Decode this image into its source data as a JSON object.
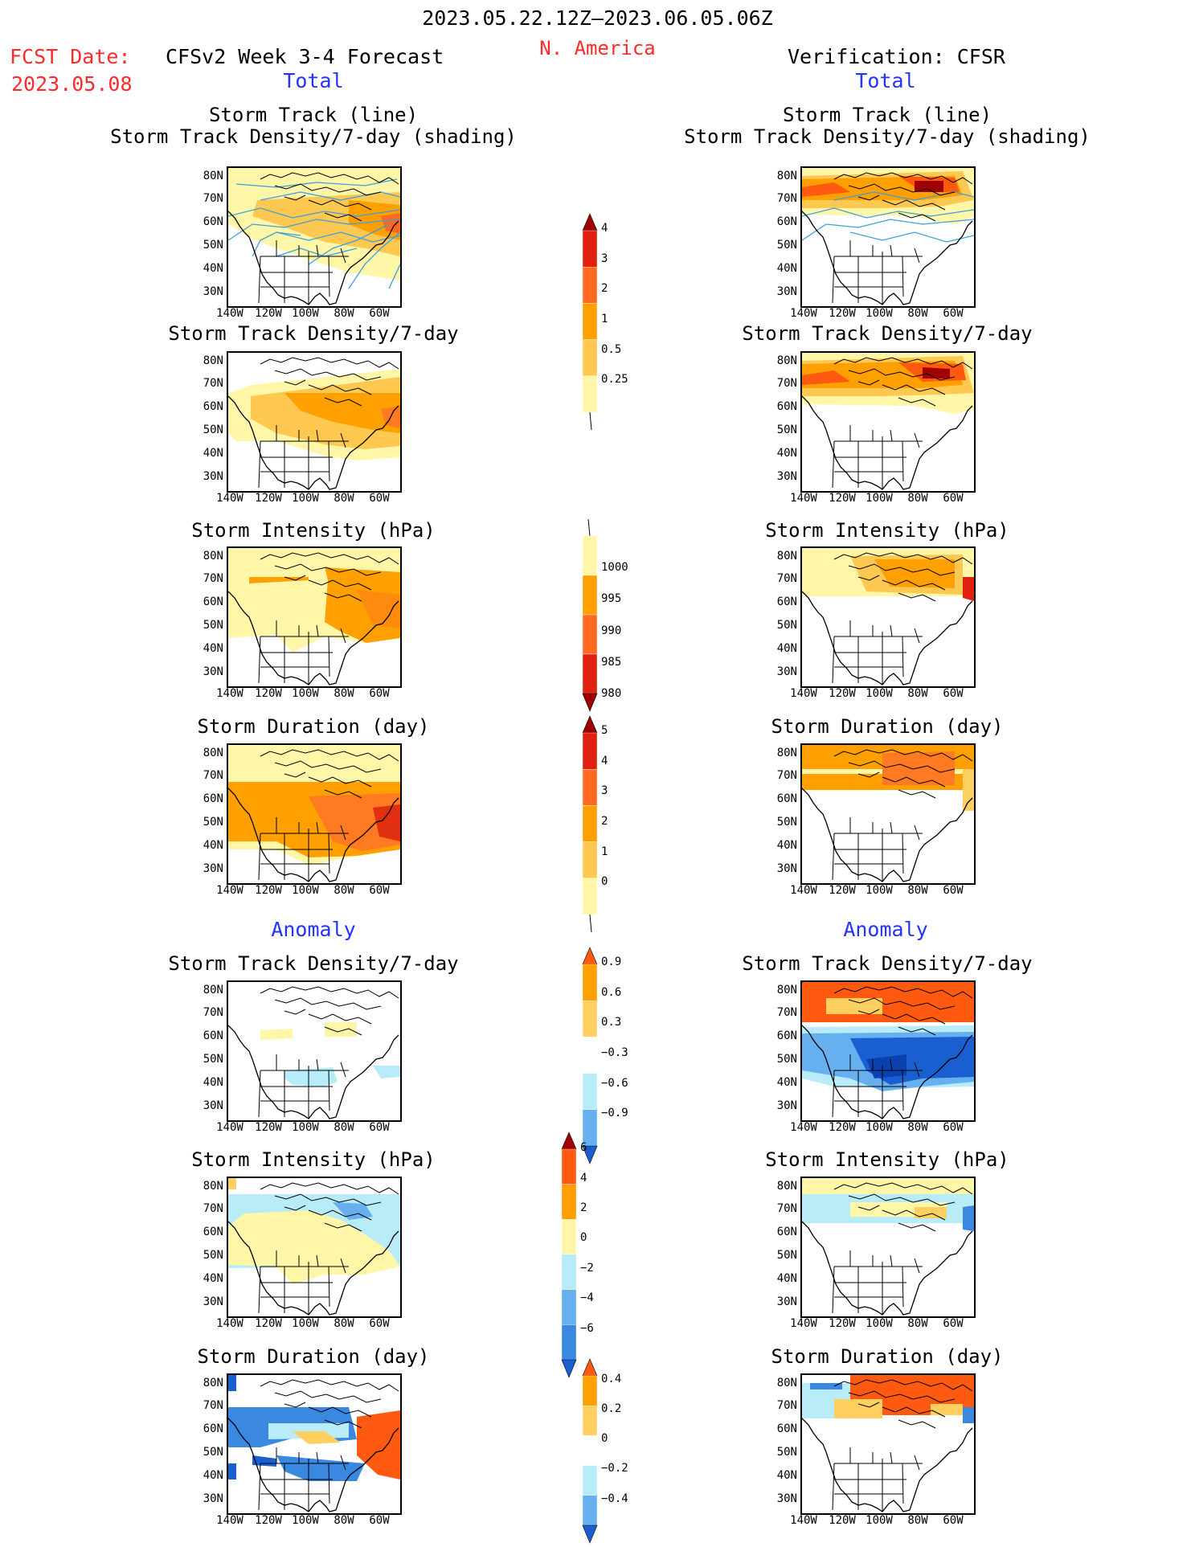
{
  "header": {
    "period": "2023.05.22.12Z–2023.06.05.06Z",
    "region": "N. America",
    "fcst_label": "FCST Date:",
    "fcst_date": "2023.05.08",
    "left_model": "CFSv2 Week 3-4 Forecast",
    "right_model": "Verification: CFSR"
  },
  "sections": {
    "total": "Total",
    "anomaly": "Anomaly"
  },
  "axes": {
    "lat_ticks": [
      "80N",
      "70N",
      "60N",
      "50N",
      "40N",
      "30N"
    ],
    "lon_ticks": [
      "140W",
      "120W",
      "100W",
      "80W",
      "60W"
    ]
  },
  "panels": {
    "track_line_title1": "Storm Track (line)",
    "track_line_title2": "Storm Track Density/7-day (shading)",
    "density_title": "Storm Track Density/7-day",
    "intensity_title": "Storm Intensity (hPa)",
    "duration_title": "Storm Duration (day)"
  },
  "colorbars": {
    "density_total": [
      "4",
      "3",
      "2",
      "1",
      "0.5",
      "0.25"
    ],
    "intensity_total": [
      "1000",
      "995",
      "990",
      "985",
      "980"
    ],
    "duration_total": [
      "5",
      "4",
      "3",
      "2",
      "1",
      "0"
    ],
    "density_anom": [
      "0.9",
      "0.6",
      "0.3",
      "−0.3",
      "−0.6",
      "−0.9"
    ],
    "intensity_anom": [
      "6",
      "4",
      "2",
      "0",
      "−2",
      "−4",
      "−6"
    ],
    "duration_anom": [
      "0.4",
      "0.2",
      "0",
      "−0.2",
      "−0.4"
    ]
  },
  "colors": {
    "header_red": "#ff2a2a",
    "section_blue": "#2233ff",
    "storm_track_line": "#3aa0e0",
    "pale_yellow": "#fff6a8",
    "orange": "#ffa000",
    "dark_red": "#a00000",
    "blue": "#1060d0",
    "light_blue": "#b8ecf8"
  }
}
